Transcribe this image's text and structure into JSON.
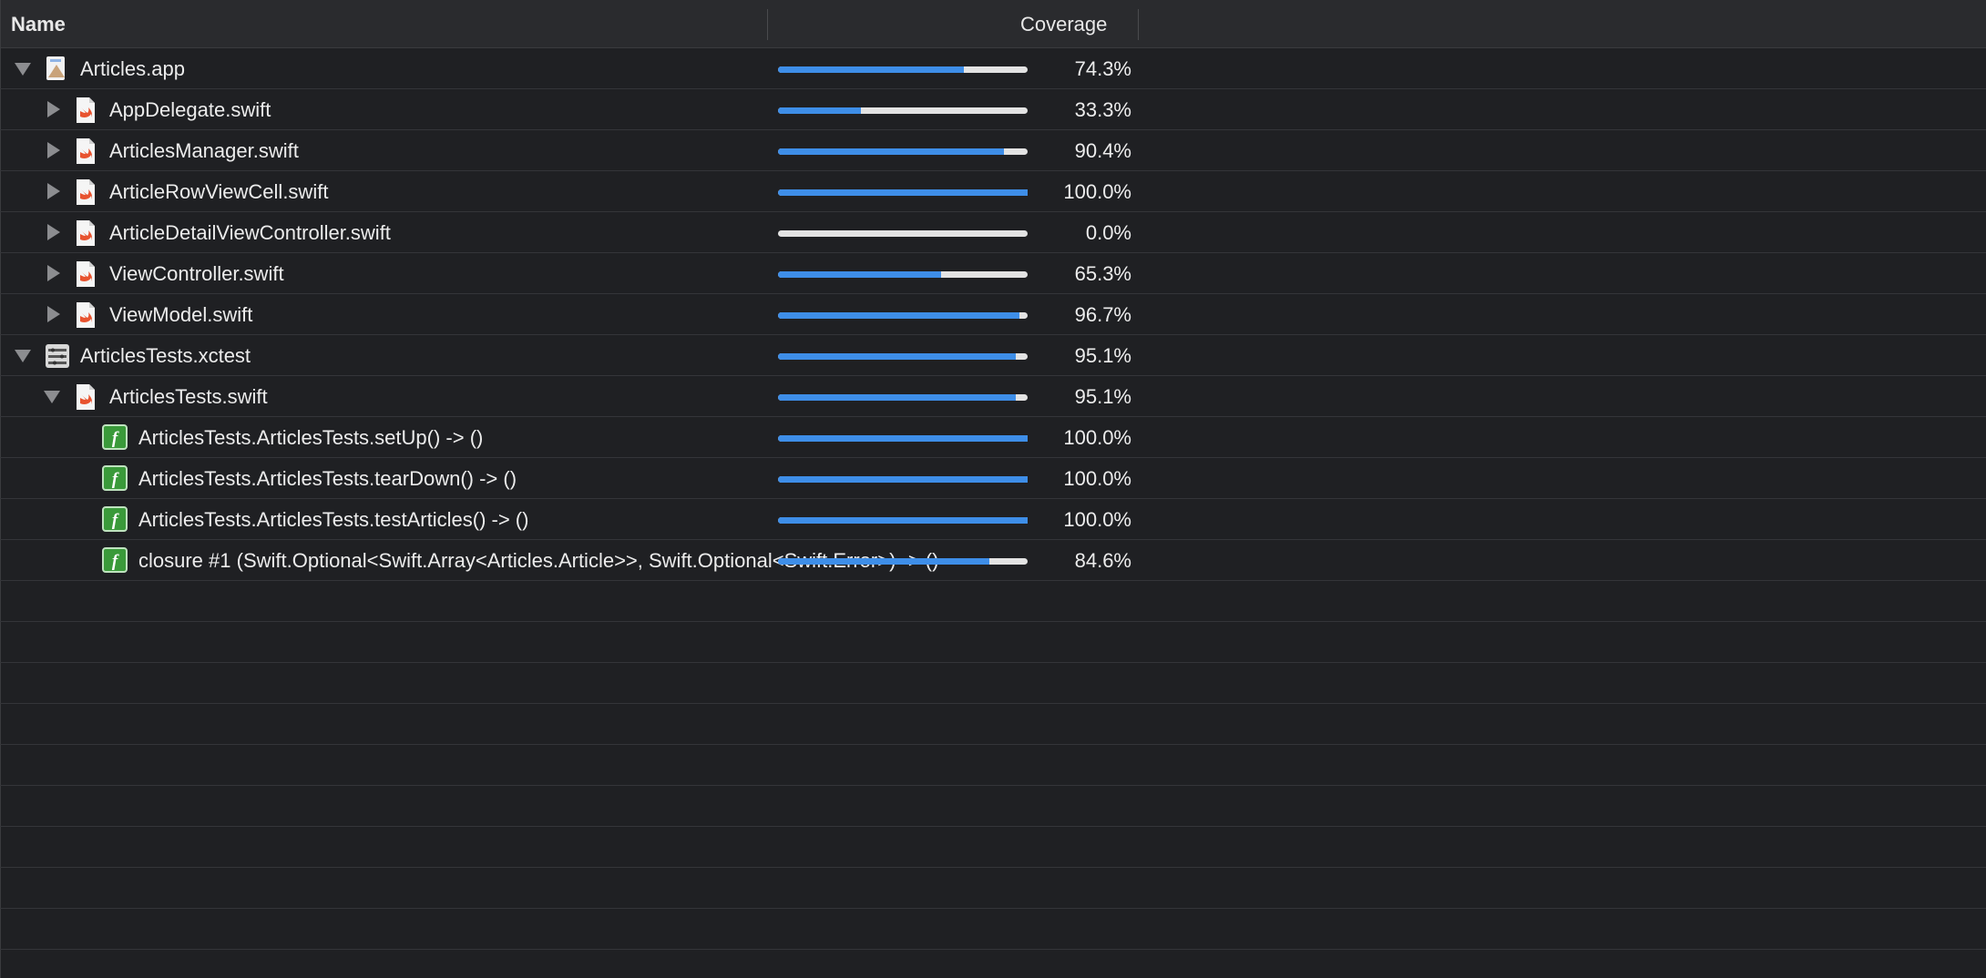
{
  "header": {
    "name_label": "Name",
    "coverage_label": "Coverage"
  },
  "colors": {
    "bar_fill": "#3e8ee8",
    "bar_track": "#e3e3e3",
    "function_icon": "#3a9a3a",
    "swift_icon": "#e8532f"
  },
  "rows": [
    {
      "level": 0,
      "expanded": true,
      "icon": "app-bundle-icon",
      "name": "Articles.app",
      "coverage": 0.743,
      "coverage_label": "74.3%"
    },
    {
      "level": 1,
      "expanded": false,
      "icon": "swift-file-icon",
      "name": "AppDelegate.swift",
      "coverage": 0.333,
      "coverage_label": "33.3%"
    },
    {
      "level": 1,
      "expanded": false,
      "icon": "swift-file-icon",
      "name": "ArticlesManager.swift",
      "coverage": 0.904,
      "coverage_label": "90.4%"
    },
    {
      "level": 1,
      "expanded": false,
      "icon": "swift-file-icon",
      "name": "ArticleRowViewCell.swift",
      "coverage": 1.0,
      "coverage_label": "100.0%"
    },
    {
      "level": 1,
      "expanded": false,
      "icon": "swift-file-icon",
      "name": "ArticleDetailViewController.swift",
      "coverage": 0.0,
      "coverage_label": "0.0%"
    },
    {
      "level": 1,
      "expanded": false,
      "icon": "swift-file-icon",
      "name": "ViewController.swift",
      "coverage": 0.653,
      "coverage_label": "65.3%"
    },
    {
      "level": 1,
      "expanded": false,
      "icon": "swift-file-icon",
      "name": "ViewModel.swift",
      "coverage": 0.967,
      "coverage_label": "96.7%"
    },
    {
      "level": 0,
      "expanded": true,
      "icon": "xctest-bundle-icon",
      "name": "ArticlesTests.xctest",
      "coverage": 0.951,
      "coverage_label": "95.1%"
    },
    {
      "level": 1,
      "expanded": true,
      "icon": "swift-file-icon",
      "name": "ArticlesTests.swift",
      "coverage": 0.951,
      "coverage_label": "95.1%"
    },
    {
      "level": 2,
      "expanded": null,
      "icon": "function-icon",
      "name": "ArticlesTests.ArticlesTests.setUp() -> ()",
      "coverage": 1.0,
      "coverage_label": "100.0%"
    },
    {
      "level": 2,
      "expanded": null,
      "icon": "function-icon",
      "name": "ArticlesTests.ArticlesTests.tearDown() -> ()",
      "coverage": 1.0,
      "coverage_label": "100.0%"
    },
    {
      "level": 2,
      "expanded": null,
      "icon": "function-icon",
      "name": "ArticlesTests.ArticlesTests.testArticles() -> ()",
      "coverage": 1.0,
      "coverage_label": "100.0%"
    },
    {
      "level": 2,
      "expanded": null,
      "icon": "function-icon",
      "name": "closure #1 (Swift.Optional<Swift.Array<Articles.Article>>, Swift.Optional<Swift.Error>) -> ()",
      "coverage": 0.846,
      "coverage_label": "84.6%"
    }
  ],
  "empty_rows": 9
}
